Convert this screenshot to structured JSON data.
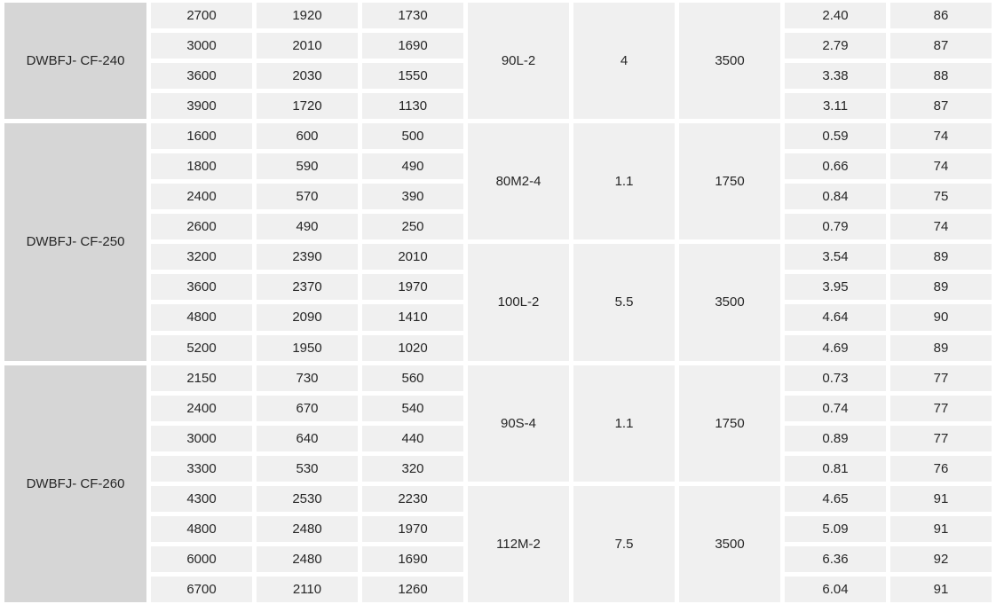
{
  "table": {
    "sections": [
      {
        "model": "DWBFJ- CF-240",
        "groups": [
          {
            "motor": "90L-2",
            "power": "4",
            "speed": "3500",
            "rows": [
              [
                "2700",
                "1920",
                "1730",
                "2.40",
                "86"
              ],
              [
                "3000",
                "2010",
                "1690",
                "2.79",
                "87"
              ],
              [
                "3600",
                "2030",
                "1550",
                "3.38",
                "88"
              ],
              [
                "3900",
                "1720",
                "1130",
                "3.11",
                "87"
              ]
            ]
          }
        ]
      },
      {
        "model": "DWBFJ- CF-250",
        "groups": [
          {
            "motor": "80M2-4",
            "power": "1.1",
            "speed": "1750",
            "rows": [
              [
                "1600",
                "600",
                "500",
                "0.59",
                "74"
              ],
              [
                "1800",
                "590",
                "490",
                "0.66",
                "74"
              ],
              [
                "2400",
                "570",
                "390",
                "0.84",
                "75"
              ],
              [
                "2600",
                "490",
                "250",
                "0.79",
                "74"
              ]
            ]
          },
          {
            "motor": "100L-2",
            "power": "5.5",
            "speed": "3500",
            "rows": [
              [
                "3200",
                "2390",
                "2010",
                "3.54",
                "89"
              ],
              [
                "3600",
                "2370",
                "1970",
                "3.95",
                "89"
              ],
              [
                "4800",
                "2090",
                "1410",
                "4.64",
                "90"
              ],
              [
                "5200",
                "1950",
                "1020",
                "4.69",
                "89"
              ]
            ]
          }
        ]
      },
      {
        "model": "DWBFJ- CF-260",
        "groups": [
          {
            "motor": "90S-4",
            "power": "1.1",
            "speed": "1750",
            "rows": [
              [
                "2150",
                "730",
                "560",
                "0.73",
                "77"
              ],
              [
                "2400",
                "670",
                "540",
                "0.74",
                "77"
              ],
              [
                "3000",
                "640",
                "440",
                "0.89",
                "77"
              ],
              [
                "3300",
                "530",
                "320",
                "0.81",
                "76"
              ]
            ]
          },
          {
            "motor": "112M-2",
            "power": "7.5",
            "speed": "3500",
            "rows": [
              [
                "4300",
                "2530",
                "2230",
                "4.65",
                "91"
              ],
              [
                "4800",
                "2480",
                "1970",
                "5.09",
                "91"
              ],
              [
                "6000",
                "2480",
                "1690",
                "6.36",
                "92"
              ],
              [
                "6700",
                "2110",
                "1260",
                "6.04",
                "91"
              ]
            ]
          }
        ]
      }
    ]
  },
  "colors": {
    "background": "#ffffff",
    "model_cell_bg": "#d6d6d6",
    "data_cell_bg": "#f0f0f0",
    "text": "#262626"
  }
}
